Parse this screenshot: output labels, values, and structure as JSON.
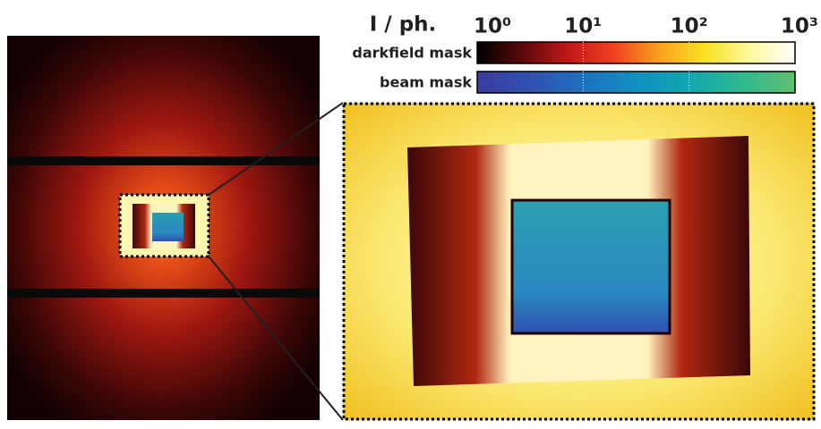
{
  "colorbar": {
    "title": "I / ph.",
    "scale": "log",
    "lim": [
      1,
      1000
    ],
    "ticks": [
      {
        "value": 1,
        "label": "10⁰"
      },
      {
        "value": 10,
        "label": "10¹"
      },
      {
        "value": 100,
        "label": "10²"
      },
      {
        "value": 1000,
        "label": "10³"
      }
    ],
    "rows": [
      {
        "label": "darkfield mask",
        "colors": [
          "#000000",
          "#5a0a0a",
          "#c01818",
          "#f04020",
          "#f8a020",
          "#f8e020",
          "#fff8a0",
          "#ffffff"
        ]
      },
      {
        "label": "beam mask",
        "colors": [
          "#3c3c9c",
          "#3050b0",
          "#2070c0",
          "#1090c0",
          "#10a8b0",
          "#30b890",
          "#60c070"
        ]
      }
    ]
  }
}
